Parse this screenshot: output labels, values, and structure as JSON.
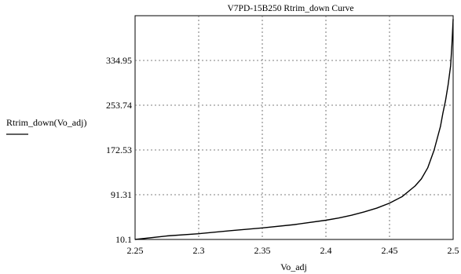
{
  "chart_data": {
    "type": "line",
    "title": "V7PD-15B250 Rtrim_down Curve",
    "xlabel": "Vo_adj",
    "ylabel": "Rtrim_down(Vo_adj)",
    "xlim": [
      2.25,
      2.5
    ],
    "ylim": [
      10.1,
      416.16
    ],
    "x_ticks": [
      2.25,
      2.3,
      2.35,
      2.4,
      2.45,
      2.5
    ],
    "x_tick_labels": [
      "2.25",
      "2.3",
      "2.35",
      "2.4",
      "2.45",
      "2.5"
    ],
    "y_ticks": [
      10.1,
      91.31,
      172.53,
      253.74,
      334.95
    ],
    "y_tick_labels": [
      "10.1",
      "91.31",
      "172.53",
      "253.74",
      "334.95"
    ],
    "grid": true,
    "legend": "left",
    "series": [
      {
        "name": "Rtrim_down(Vo_adj)",
        "color": "#000000",
        "x": [
          2.25,
          2.275,
          2.3,
          2.325,
          2.35,
          2.375,
          2.4,
          2.41,
          2.42,
          2.43,
          2.44,
          2.45,
          2.46,
          2.47,
          2.475,
          2.48,
          2.485,
          2.49,
          2.492,
          2.494,
          2.496,
          2.498,
          2.499,
          2.5
        ],
        "y": [
          10.1,
          16.5,
          20.5,
          26,
          31,
          37,
          45,
          49,
          54,
          60,
          67,
          76,
          88,
          107,
          120,
          140,
          172,
          215,
          240,
          262,
          290,
          325,
          362,
          410
        ]
      }
    ]
  }
}
